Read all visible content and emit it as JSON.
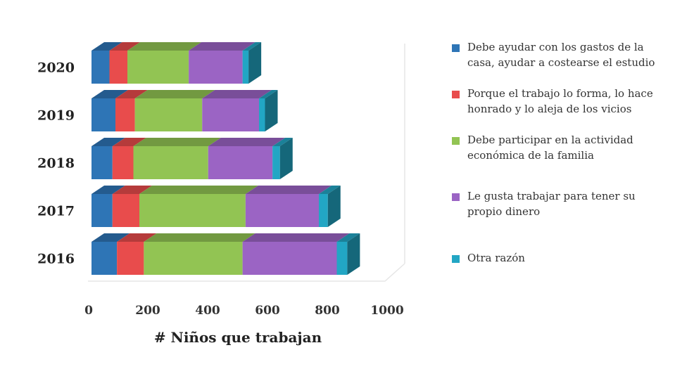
{
  "chart_data": {
    "type": "bar",
    "orientation": "horizontal",
    "stacked": true,
    "style": "3d",
    "categories": [
      "2020",
      "2019",
      "2018",
      "2017",
      "2016"
    ],
    "series": [
      {
        "name": "Debe ayudar con los gastos de la casa, ayudar a costearse el estudio",
        "color": "#2e75b6",
        "values": [
          60,
          80,
          70,
          70,
          85
        ]
      },
      {
        "name": "Porque el trabajo lo forma, lo hace honrado y lo aleja de los vicios",
        "color": "#e84c4c",
        "values": [
          60,
          65,
          70,
          90,
          90
        ]
      },
      {
        "name": "Debe participar en la actividad económica de la familia",
        "color": "#92c453",
        "values": [
          205,
          225,
          250,
          355,
          330
        ]
      },
      {
        "name": "Le gusta trabajar para tener su propio dinero",
        "color": "#9b64c4",
        "values": [
          180,
          190,
          215,
          245,
          315
        ]
      },
      {
        "name": "Otra razón",
        "color": "#22a6c4",
        "values": [
          20,
          20,
          25,
          30,
          35
        ]
      }
    ],
    "xaxis": {
      "label": "# Niños que trabajan",
      "ticks": [
        "0",
        "200",
        "400",
        "600",
        "800",
        "1000"
      ],
      "range": [
        0,
        1000
      ]
    },
    "grid": false,
    "legend": "right"
  }
}
